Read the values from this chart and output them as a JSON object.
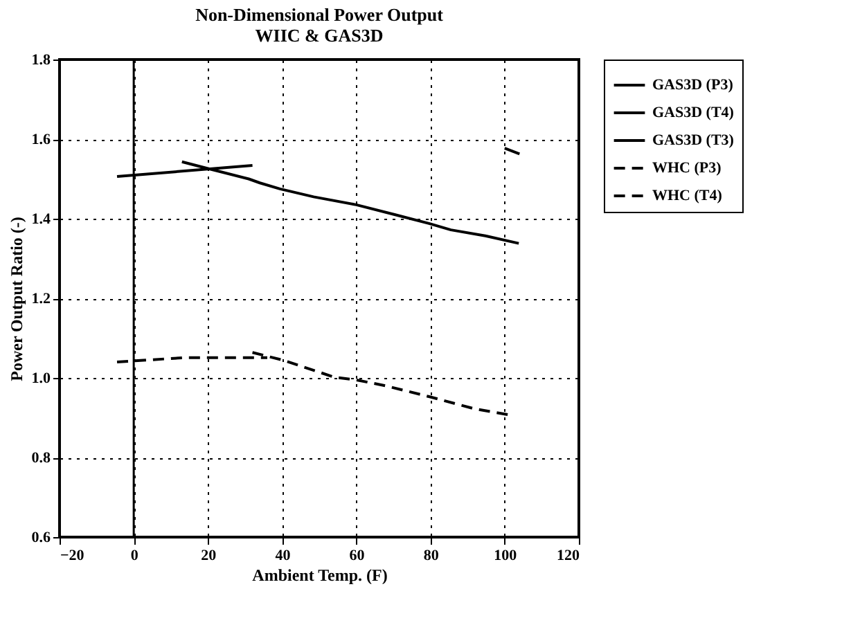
{
  "chart_data": {
    "type": "line",
    "title": "Non-Dimensional Power Output",
    "subtitle": "WIIC & GAS3D",
    "xlabel": "Ambient Temp. (F)",
    "ylabel": "Power Output Ratio (-)",
    "xlim": [
      -20,
      120
    ],
    "xticks": [
      -20,
      0,
      20,
      40,
      60,
      80,
      100,
      120
    ],
    "ylim": [
      0.6,
      1.8
    ],
    "yticks": [
      0.6,
      0.8,
      {
        "value": 1,
        "label": "1.0"
      },
      1.2,
      1.4,
      1.6,
      1.8
    ],
    "grid": true,
    "legend": "right",
    "marker": "none",
    "ref_lines": [
      {
        "axis": "x",
        "value": 0,
        "color": "#000000",
        "line_style": "solid"
      }
    ],
    "series": [
      {
        "name": "GAS3D (P3)",
        "color": "#000000",
        "line_style": "solid",
        "x": [
          -4.5,
          32
        ],
        "values": [
          1.506,
          1.534
        ]
      },
      {
        "name": "GAS3D (T4)",
        "color": "#000000",
        "line_style": "solid",
        "x": [
          13,
          20,
          31,
          34,
          39.4,
          48.5,
          60,
          70.5,
          79.6,
          85.5,
          94.8,
          103.8
        ],
        "values": [
          1.543,
          1.526,
          1.5,
          1.49,
          1.475,
          1.455,
          1.435,
          1.41,
          1.388,
          1.372,
          1.357,
          1.338
        ]
      },
      {
        "name": "GAS3D (T3)",
        "color": "#000000",
        "line_style": "solid",
        "x": [
          100,
          104
        ],
        "values": [
          1.577,
          1.563
        ]
      },
      {
        "name": "WHC  (P3)",
        "color": "#000000",
        "line_style": "dashed",
        "x": [
          -4.5,
          13.8,
          26.6,
          36
        ],
        "values": [
          1.04,
          1.051,
          1.051,
          1.051
        ]
      },
      {
        "name": "WHC  (T4)",
        "color": "#000000",
        "line_style": "dashed",
        "x": [
          32,
          40.5,
          54,
          60,
          68,
          79.6,
          92,
          102
        ],
        "values": [
          1.064,
          1.044,
          1.002,
          0.995,
          0.98,
          0.953,
          0.922,
          0.906
        ]
      }
    ]
  }
}
